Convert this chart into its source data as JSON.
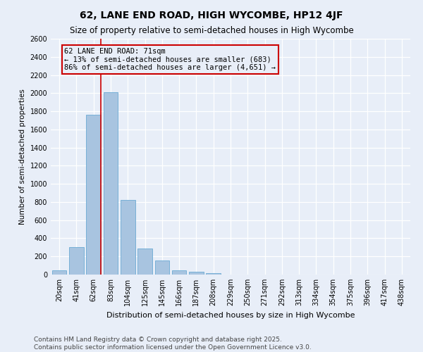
{
  "title": "62, LANE END ROAD, HIGH WYCOMBE, HP12 4JF",
  "subtitle": "Size of property relative to semi-detached houses in High Wycombe",
  "xlabel": "Distribution of semi-detached houses by size in High Wycombe",
  "ylabel": "Number of semi-detached properties",
  "bar_color": "#a8c4e0",
  "bar_edge_color": "#6aaad4",
  "background_color": "#e8eef8",
  "categories": [
    "20sqm",
    "41sqm",
    "62sqm",
    "83sqm",
    "104sqm",
    "125sqm",
    "145sqm",
    "166sqm",
    "187sqm",
    "208sqm",
    "229sqm",
    "250sqm",
    "271sqm",
    "292sqm",
    "313sqm",
    "334sqm",
    "354sqm",
    "375sqm",
    "396sqm",
    "417sqm",
    "438sqm"
  ],
  "values": [
    50,
    300,
    1760,
    2010,
    820,
    290,
    155,
    45,
    30,
    18,
    0,
    0,
    0,
    0,
    0,
    0,
    0,
    0,
    0,
    0,
    0
  ],
  "ylim": [
    0,
    2600
  ],
  "yticks": [
    0,
    200,
    400,
    600,
    800,
    1000,
    1200,
    1400,
    1600,
    1800,
    2000,
    2200,
    2400,
    2600
  ],
  "property_bin_index": 2,
  "annotation_title": "62 LANE END ROAD: 71sqm",
  "annotation_line1": "← 13% of semi-detached houses are smaller (683)",
  "annotation_line2": "86% of semi-detached houses are larger (4,651) →",
  "vline_color": "#cc0000",
  "footnote1": "Contains HM Land Registry data © Crown copyright and database right 2025.",
  "footnote2": "Contains public sector information licensed under the Open Government Licence v3.0.",
  "title_fontsize": 10,
  "subtitle_fontsize": 8.5,
  "xlabel_fontsize": 8,
  "ylabel_fontsize": 7.5,
  "tick_fontsize": 7,
  "annotation_fontsize": 7.5,
  "footnote_fontsize": 6.5
}
